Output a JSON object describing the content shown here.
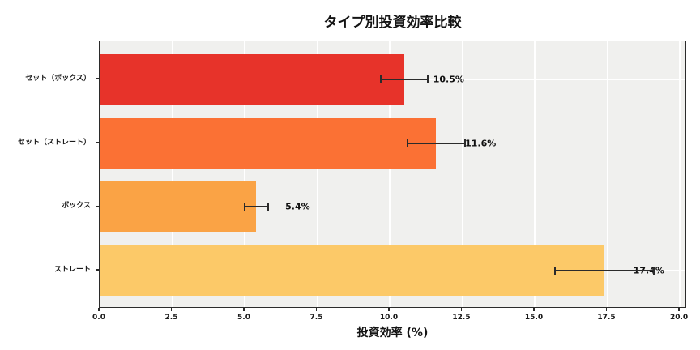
{
  "chart_data": {
    "type": "bar",
    "orientation": "horizontal",
    "title": "タイプ別投資効率比較",
    "xlabel": "投資効率 (%)",
    "ylabel": "",
    "categories": [
      "セット（ボックス）",
      "セット（ストレート）",
      "ボックス",
      "ストレート"
    ],
    "values": [
      10.5,
      11.6,
      5.4,
      17.4
    ],
    "errors": [
      0.8,
      1.0,
      0.4,
      1.7
    ],
    "value_labels": [
      "10.5%",
      "11.6%",
      "5.4%",
      "17.4%"
    ],
    "bar_colors": [
      "#e7332a",
      "#fb7134",
      "#faa345",
      "#fcc968"
    ],
    "xticks": [
      0,
      2.5,
      5,
      7.5,
      10,
      12.5,
      15,
      17.5,
      20
    ],
    "xtick_labels": [
      "0.0",
      "2.5",
      "5.0",
      "7.5",
      "10.0",
      "12.5",
      "15.0",
      "17.5",
      "20.0"
    ],
    "xlim": [
      0,
      20.25
    ],
    "grid": true,
    "legend_position": "none",
    "plot_background": "#f0f0ee",
    "grid_color": "#ffffff",
    "errorbar_color": "#2b2b2b",
    "spine_color": "#2b2b2b"
  }
}
